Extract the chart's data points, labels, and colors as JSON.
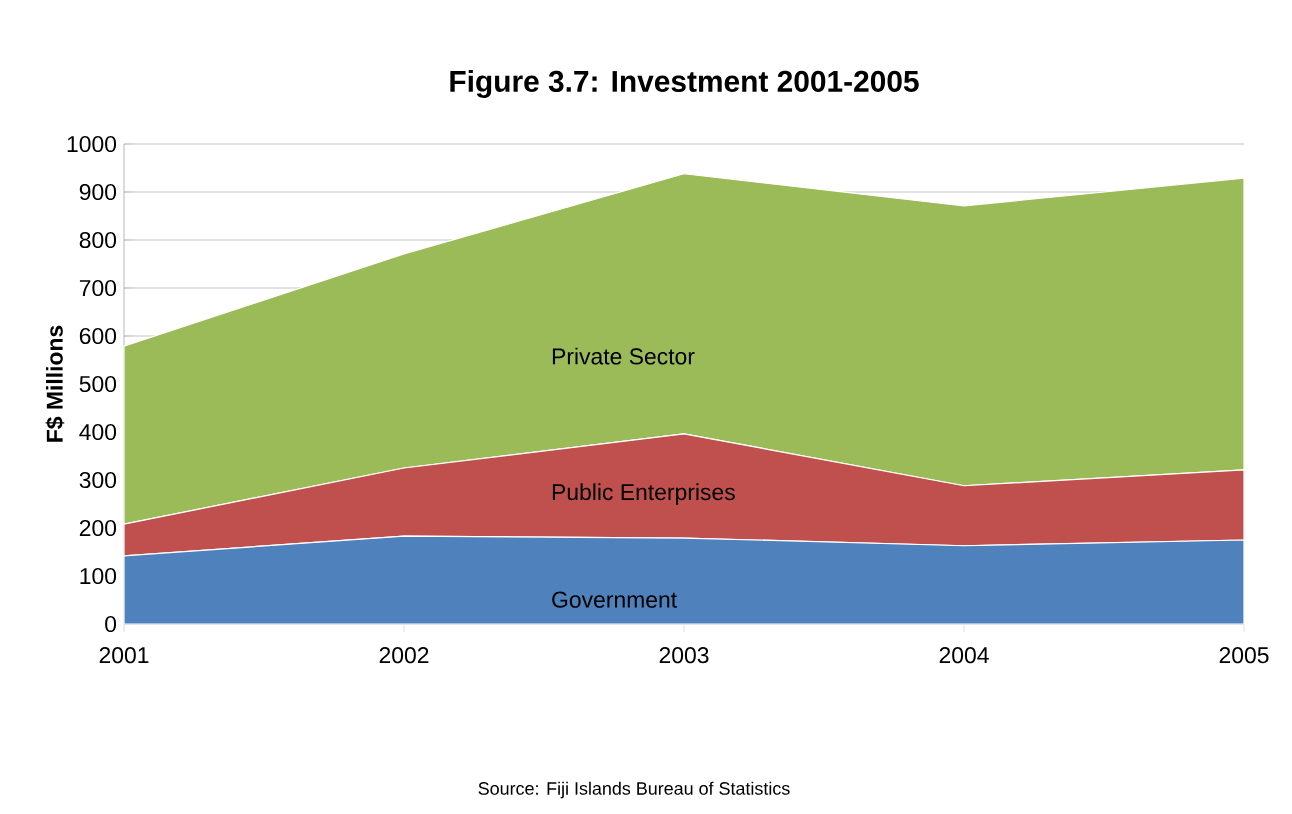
{
  "chart_data": {
    "type": "area",
    "title": "Figure 3.7: Investment 2001-2005",
    "ylabel": "F$ Millions",
    "categories": [
      "2001",
      "2002",
      "2003",
      "2004",
      "2005"
    ],
    "stacked": true,
    "series": [
      {
        "name": "Government",
        "color": "#4f81bd",
        "values": [
          142,
          183,
          179,
          163,
          175
        ]
      },
      {
        "name": "Public Enterprises",
        "color": "#c0504d",
        "values": [
          66,
          142,
          217,
          125,
          146
        ]
      },
      {
        "name": "Private Sector",
        "color": "#9bbb59",
        "values": [
          371,
          446,
          542,
          583,
          608
        ]
      }
    ],
    "ylim": [
      0,
      1000
    ],
    "yticks": [
      0,
      100,
      200,
      300,
      400,
      500,
      600,
      700,
      800,
      900,
      1000
    ],
    "grid": "y",
    "legend": false,
    "annotations": [
      "Source: Fiji Islands Bureau of Statistics"
    ]
  }
}
